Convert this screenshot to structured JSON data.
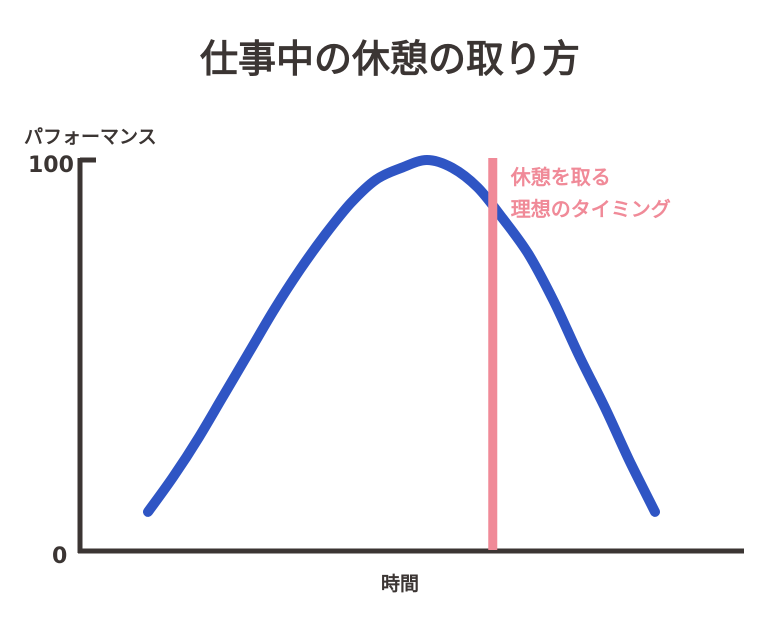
{
  "chart_data": {
    "type": "line",
    "title": "仕事中の休憩の取り方",
    "ylabel": "パフォーマンス",
    "xlabel": "時間",
    "ylim": [
      0,
      100
    ],
    "yticks": [
      "0",
      "100"
    ],
    "grid": false,
    "series": [
      {
        "x": [
          0,
          0.05,
          0.1,
          0.15,
          0.2,
          0.25,
          0.3,
          0.35,
          0.4,
          0.45,
          0.5,
          0.55,
          0.6,
          0.65,
          0.7,
          0.75,
          0.8,
          0.85,
          0.9,
          0.95,
          1
        ],
        "values": [
          10,
          19,
          29,
          40,
          51,
          62,
          72,
          81,
          89,
          95,
          98,
          100,
          98,
          93,
          85,
          76,
          64,
          50,
          37,
          23,
          10
        ]
      }
    ],
    "annotation": {
      "x": 0.68,
      "lines": [
        "休憩を取る",
        "理想のタイミング"
      ]
    },
    "colors": {
      "curve": "#2f55c4",
      "marker": "#f08a98",
      "axis": "#3b3533",
      "text": "#3b3533"
    }
  }
}
